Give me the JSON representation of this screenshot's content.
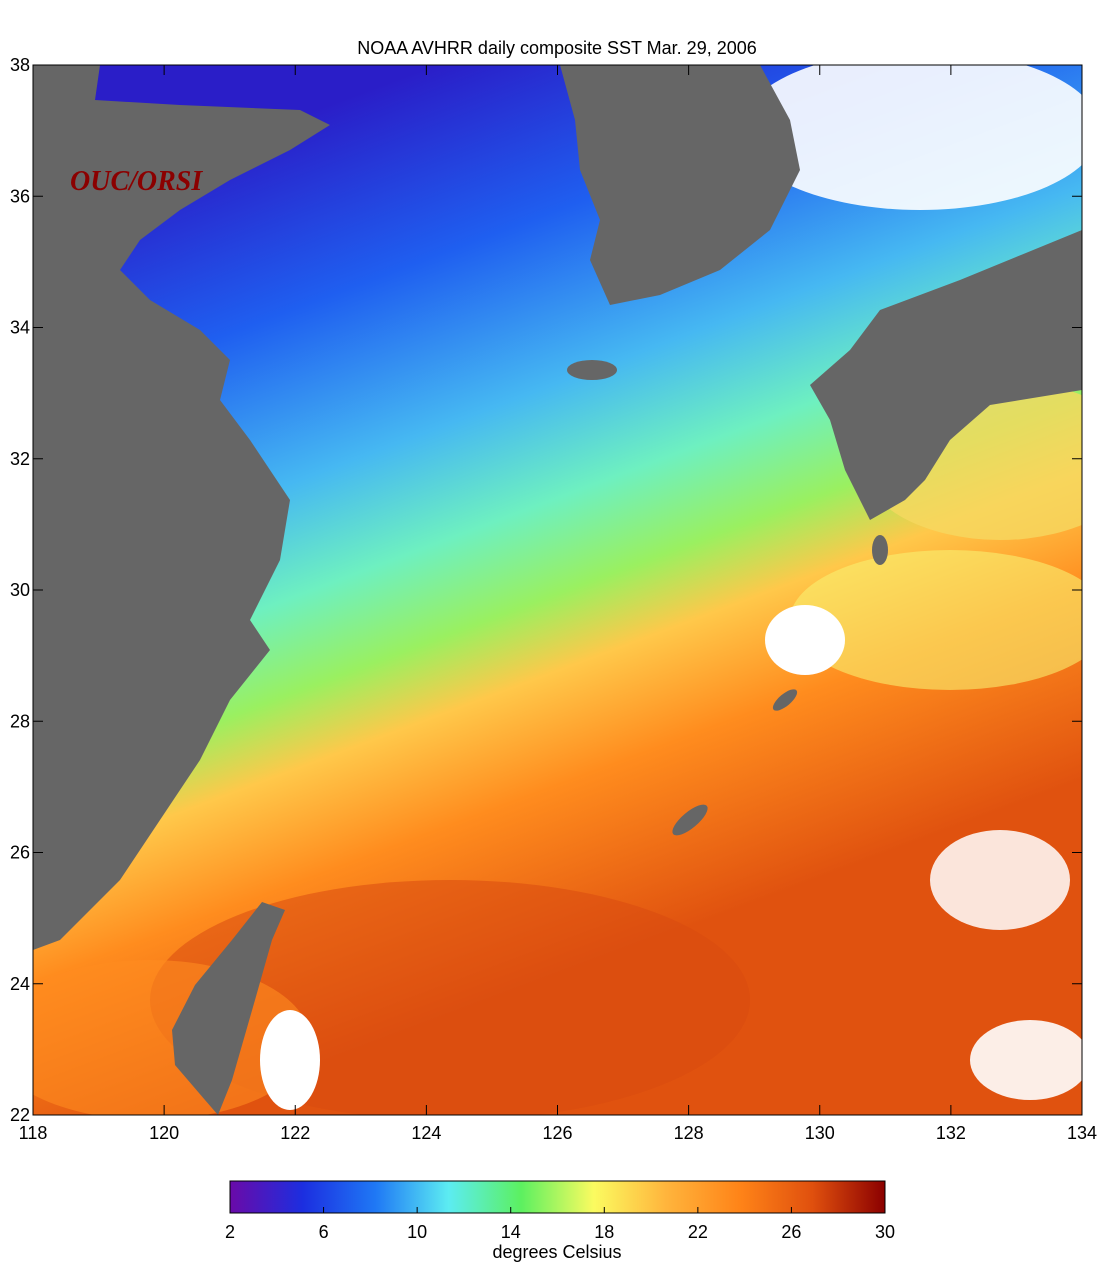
{
  "title": "NOAA AVHRR daily composite SST   Mar. 29, 2006",
  "watermark": "OUC/ORSI",
  "map": {
    "xlim": [
      118,
      134
    ],
    "ylim": [
      22,
      38
    ],
    "xticks": [
      118,
      120,
      122,
      124,
      126,
      128,
      130,
      132,
      134
    ],
    "yticks": [
      22,
      24,
      26,
      28,
      30,
      32,
      34,
      36,
      38
    ]
  },
  "colorbar": {
    "label": "degrees Celsius",
    "lim": [
      2,
      30
    ],
    "ticks": [
      2,
      6,
      10,
      14,
      18,
      22,
      26,
      30
    ],
    "colors": [
      "#6a0aa8",
      "#1c2ee0",
      "#1f78f5",
      "#5cecf2",
      "#5cf060",
      "#fbfb60",
      "#ffb43c",
      "#ff8418",
      "#e0500e",
      "#8b0000"
    ]
  }
}
